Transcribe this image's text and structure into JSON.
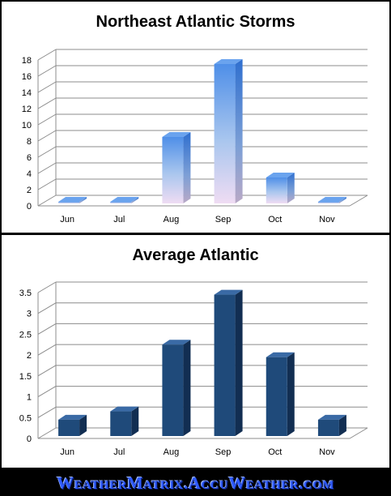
{
  "watermark": "WeatherMatrix.AccuWeather.com",
  "colors": {
    "gradient_top": "#4f8fe8",
    "gradient_bottom": "#efdcf3",
    "navy": "#1f4a7a",
    "navy_side": "#122e52",
    "navy_top": "#3a6aa5"
  },
  "chart_data": [
    {
      "type": "bar",
      "title": "Northeast Atlantic Storms",
      "categories": [
        "Jun",
        "Jul",
        "Aug",
        "Sep",
        "Oct",
        "Nov"
      ],
      "values": [
        0.5,
        0.5,
        8.5,
        17.5,
        3.5,
        0.5
      ],
      "ylim": [
        0,
        18
      ],
      "yticks": [
        "0",
        "2",
        "4",
        "6",
        "8",
        "10",
        "12",
        "14",
        "16",
        "18"
      ],
      "grid": true,
      "style": "3d-gradient"
    },
    {
      "type": "bar",
      "title": "Average Atlantic",
      "categories": [
        "Jun",
        "Jul",
        "Aug",
        "Sep",
        "Oct",
        "Nov"
      ],
      "values": [
        0.45,
        0.65,
        2.25,
        3.45,
        1.95,
        0.45
      ],
      "ylim": [
        0,
        3.5
      ],
      "yticks": [
        "0",
        "0.5",
        "1",
        "1.5",
        "2",
        "2.5",
        "3",
        "3.5"
      ],
      "grid": true,
      "style": "3d-navy"
    }
  ]
}
